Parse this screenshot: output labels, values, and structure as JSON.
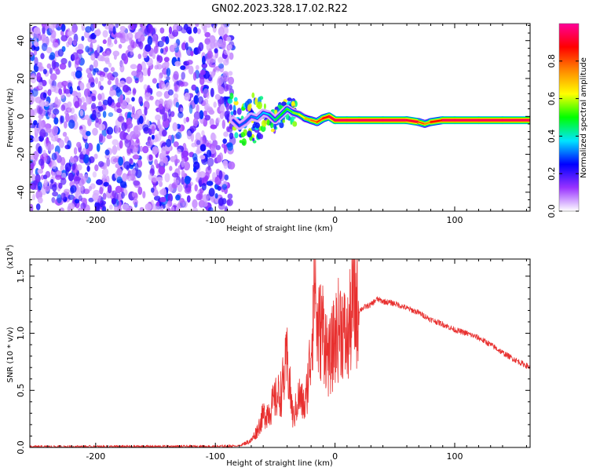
{
  "title": "GN02.2023.328.17.02.R22",
  "chart_data": [
    {
      "type": "heatmap",
      "xlabel": "Height of straight line (km)",
      "ylabel": "Frequency (Hz)",
      "xlim": [
        -255,
        163
      ],
      "ylim": [
        -50,
        49
      ],
      "x_ticks": [
        -200,
        -100,
        0,
        100
      ],
      "y_ticks": [
        -40,
        -20,
        0,
        20,
        40
      ],
      "colorbar": {
        "label": "Normalized spectral amplitude",
        "range": [
          0.0,
          1.0
        ],
        "ticks": [
          "0.0",
          "0.2",
          "0.4",
          "0.6",
          "0.8"
        ],
        "tick_values": [
          0.0,
          0.2,
          0.4,
          0.6,
          0.8
        ],
        "colors": [
          "#ffffff",
          "#9933ff",
          "#0000ff",
          "#00e5ff",
          "#00ff00",
          "#ffff00",
          "#ff8800",
          "#ff0000",
          "#ff0099"
        ]
      },
      "noise_region": {
        "x_range": [
          -255,
          -85
        ],
        "amplitude": [
          0.05,
          0.3
        ]
      },
      "signal_track": {
        "x": [
          -85,
          -80,
          -75,
          -70,
          -65,
          -60,
          -55,
          -50,
          -45,
          -40,
          -35,
          -30,
          -25,
          -20,
          -15,
          -10,
          -5,
          0,
          10,
          20,
          40,
          60,
          70,
          75,
          80,
          90,
          100,
          120,
          140,
          163
        ],
        "frequency": [
          -2,
          -5,
          -3,
          0,
          -1,
          2,
          1,
          -2,
          1,
          4,
          2,
          1,
          -1,
          -2,
          -3,
          -1,
          0,
          -2,
          -2,
          -2,
          -2,
          -2,
          -3,
          -4,
          -3,
          -2,
          -2,
          -2,
          -2,
          -2
        ],
        "amplitude": [
          0.25,
          0.3,
          0.3,
          0.3,
          0.35,
          0.35,
          0.4,
          0.45,
          0.5,
          0.5,
          0.55,
          0.6,
          0.65,
          0.75,
          0.8,
          0.85,
          0.9,
          0.95,
          0.95,
          0.95,
          0.95,
          0.95,
          0.9,
          0.7,
          0.8,
          0.95,
          0.95,
          0.95,
          0.95,
          0.95
        ]
      }
    },
    {
      "type": "line",
      "xlabel": "Height of straight line (km)",
      "ylabel": "SNR (10 * v/v)",
      "y_multiplier": "(x10",
      "y_multiplier_exp": "4",
      "y_multiplier_close": ")",
      "xlim": [
        -255,
        163
      ],
      "ylim": [
        0,
        16500
      ],
      "x_ticks": [
        -200,
        -100,
        0,
        100
      ],
      "y_ticks": [
        0,
        5000,
        10000,
        15000
      ],
      "y_tick_labels": [
        "0.0",
        "0.5",
        "1.0",
        "1.5"
      ],
      "line_color": "#e8302f",
      "series": [
        {
          "x": [
            -255,
            -150,
            -100,
            -80,
            -70,
            -65,
            -60,
            -55,
            -50,
            -45,
            -40,
            -35,
            -30,
            -25,
            -20,
            -17,
            -15,
            -10,
            -5,
            0,
            5,
            10,
            15,
            20,
            25,
            30,
            35,
            40,
            50,
            60,
            70,
            80,
            90,
            100,
            110,
            120,
            130,
            140,
            150,
            163
          ],
          "y": [
            50,
            80,
            80,
            150,
            600,
            1500,
            2800,
            3200,
            4200,
            4800,
            7500,
            2500,
            4500,
            3500,
            8500,
            16000,
            10000,
            10500,
            7500,
            9500,
            11000,
            9000,
            12500,
            12000,
            12300,
            12500,
            13000,
            12800,
            12600,
            12200,
            11800,
            11200,
            10800,
            10300,
            10000,
            9600,
            9000,
            8300,
            7700,
            7000
          ]
        }
      ]
    }
  ]
}
